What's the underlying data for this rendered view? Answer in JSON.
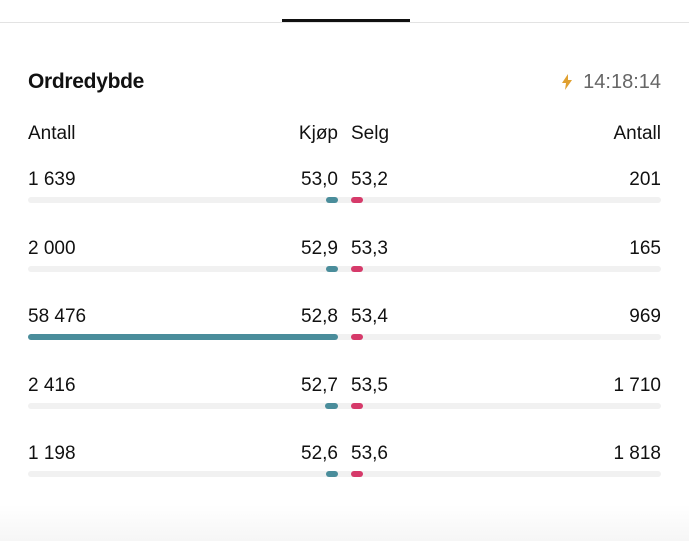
{
  "header": {
    "title": "Ordredybde",
    "time": "14:18:14"
  },
  "columns": {
    "bid_qty": "Antall",
    "bid_price": "Kjøp",
    "ask_price": "Selg",
    "ask_qty": "Antall"
  },
  "rows": [
    {
      "bid_qty": {
        "value": 1639,
        "label": "1 639"
      },
      "bid_price": "53,0",
      "ask_price": "53,2",
      "ask_qty": 201
    },
    {
      "bid_qty": {
        "value": 2000,
        "label": "2 000"
      },
      "bid_price": "52,9",
      "ask_price": "53,3",
      "ask_qty": 165
    },
    {
      "bid_qty": {
        "value": 58476,
        "label": "58 476"
      },
      "bid_price": "52,8",
      "ask_price": "53,4",
      "ask_qty": 969
    },
    {
      "bid_qty": {
        "value": 2416,
        "label": "2 416"
      },
      "bid_price": "52,7",
      "ask_price": "53,5",
      "ask_qty": {
        "value": 1710,
        "label": "1 710"
      }
    },
    {
      "bid_qty": {
        "value": 1198,
        "label": "1 198"
      },
      "bid_price": "52,6",
      "ask_price": "53,6",
      "ask_qty": {
        "value": 1818,
        "label": "1 818"
      }
    }
  ]
}
